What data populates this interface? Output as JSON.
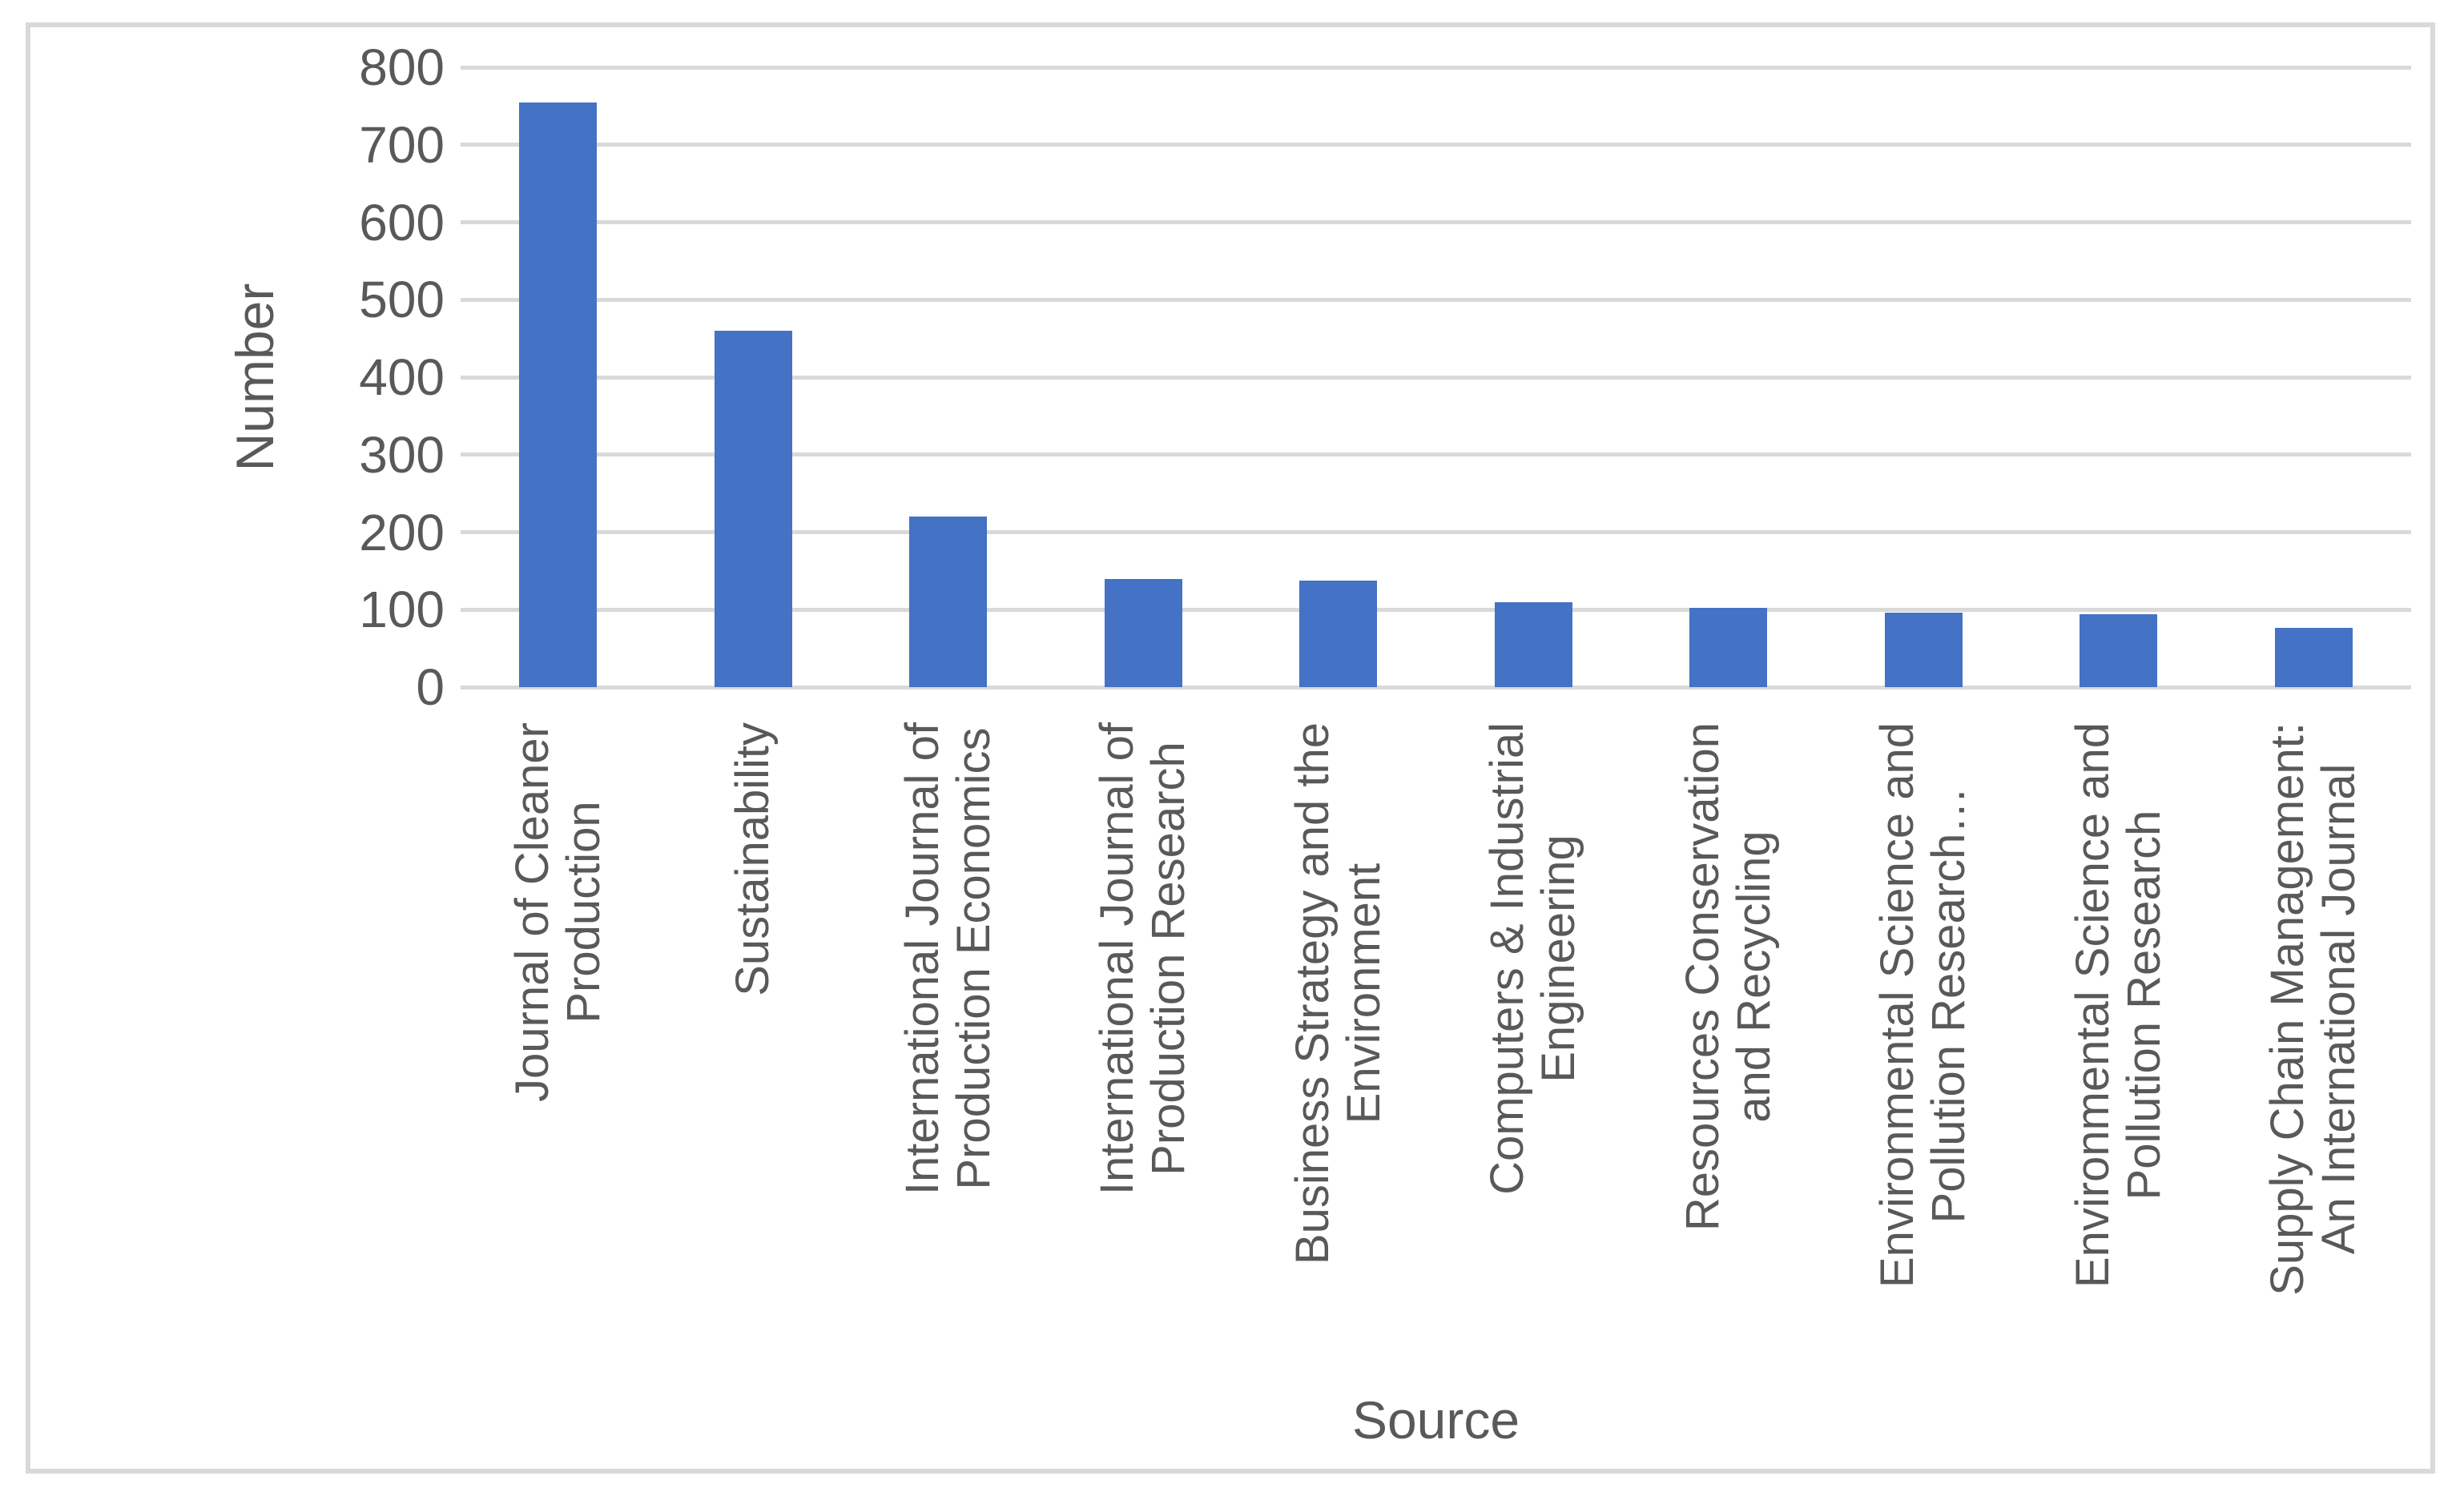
{
  "figure": {
    "background_color": "#ffffff",
    "frame_border_color": "#d9d9d9"
  },
  "chart_data": {
    "type": "bar",
    "xlabel": "Source",
    "ylabel": "Number",
    "ylim": [
      0,
      800
    ],
    "yticks": [
      0,
      100,
      200,
      300,
      400,
      500,
      600,
      700,
      800
    ],
    "grid": true,
    "legend": false,
    "bar_color": "#4472c4",
    "gridline_color": "#d9d9d9",
    "text_color": "#595959",
    "categories": [
      "Journal of Cleaner\nProduction",
      "Sustainability",
      "International Journal of\nProduction Economics",
      "International Journal of\nProduction Research",
      "Business Strategy and the\nEnvironment",
      "Computers & Industrial\nEngineering",
      "Resources Conservation\nand Recycling",
      "Environmental Science and\nPollution Research…",
      "Environmental Science and\nPollution Research",
      "Supply Chain Management:\nAn International Journal"
    ],
    "values": [
      755,
      460,
      220,
      140,
      137,
      110,
      102,
      96,
      94,
      77
    ]
  }
}
